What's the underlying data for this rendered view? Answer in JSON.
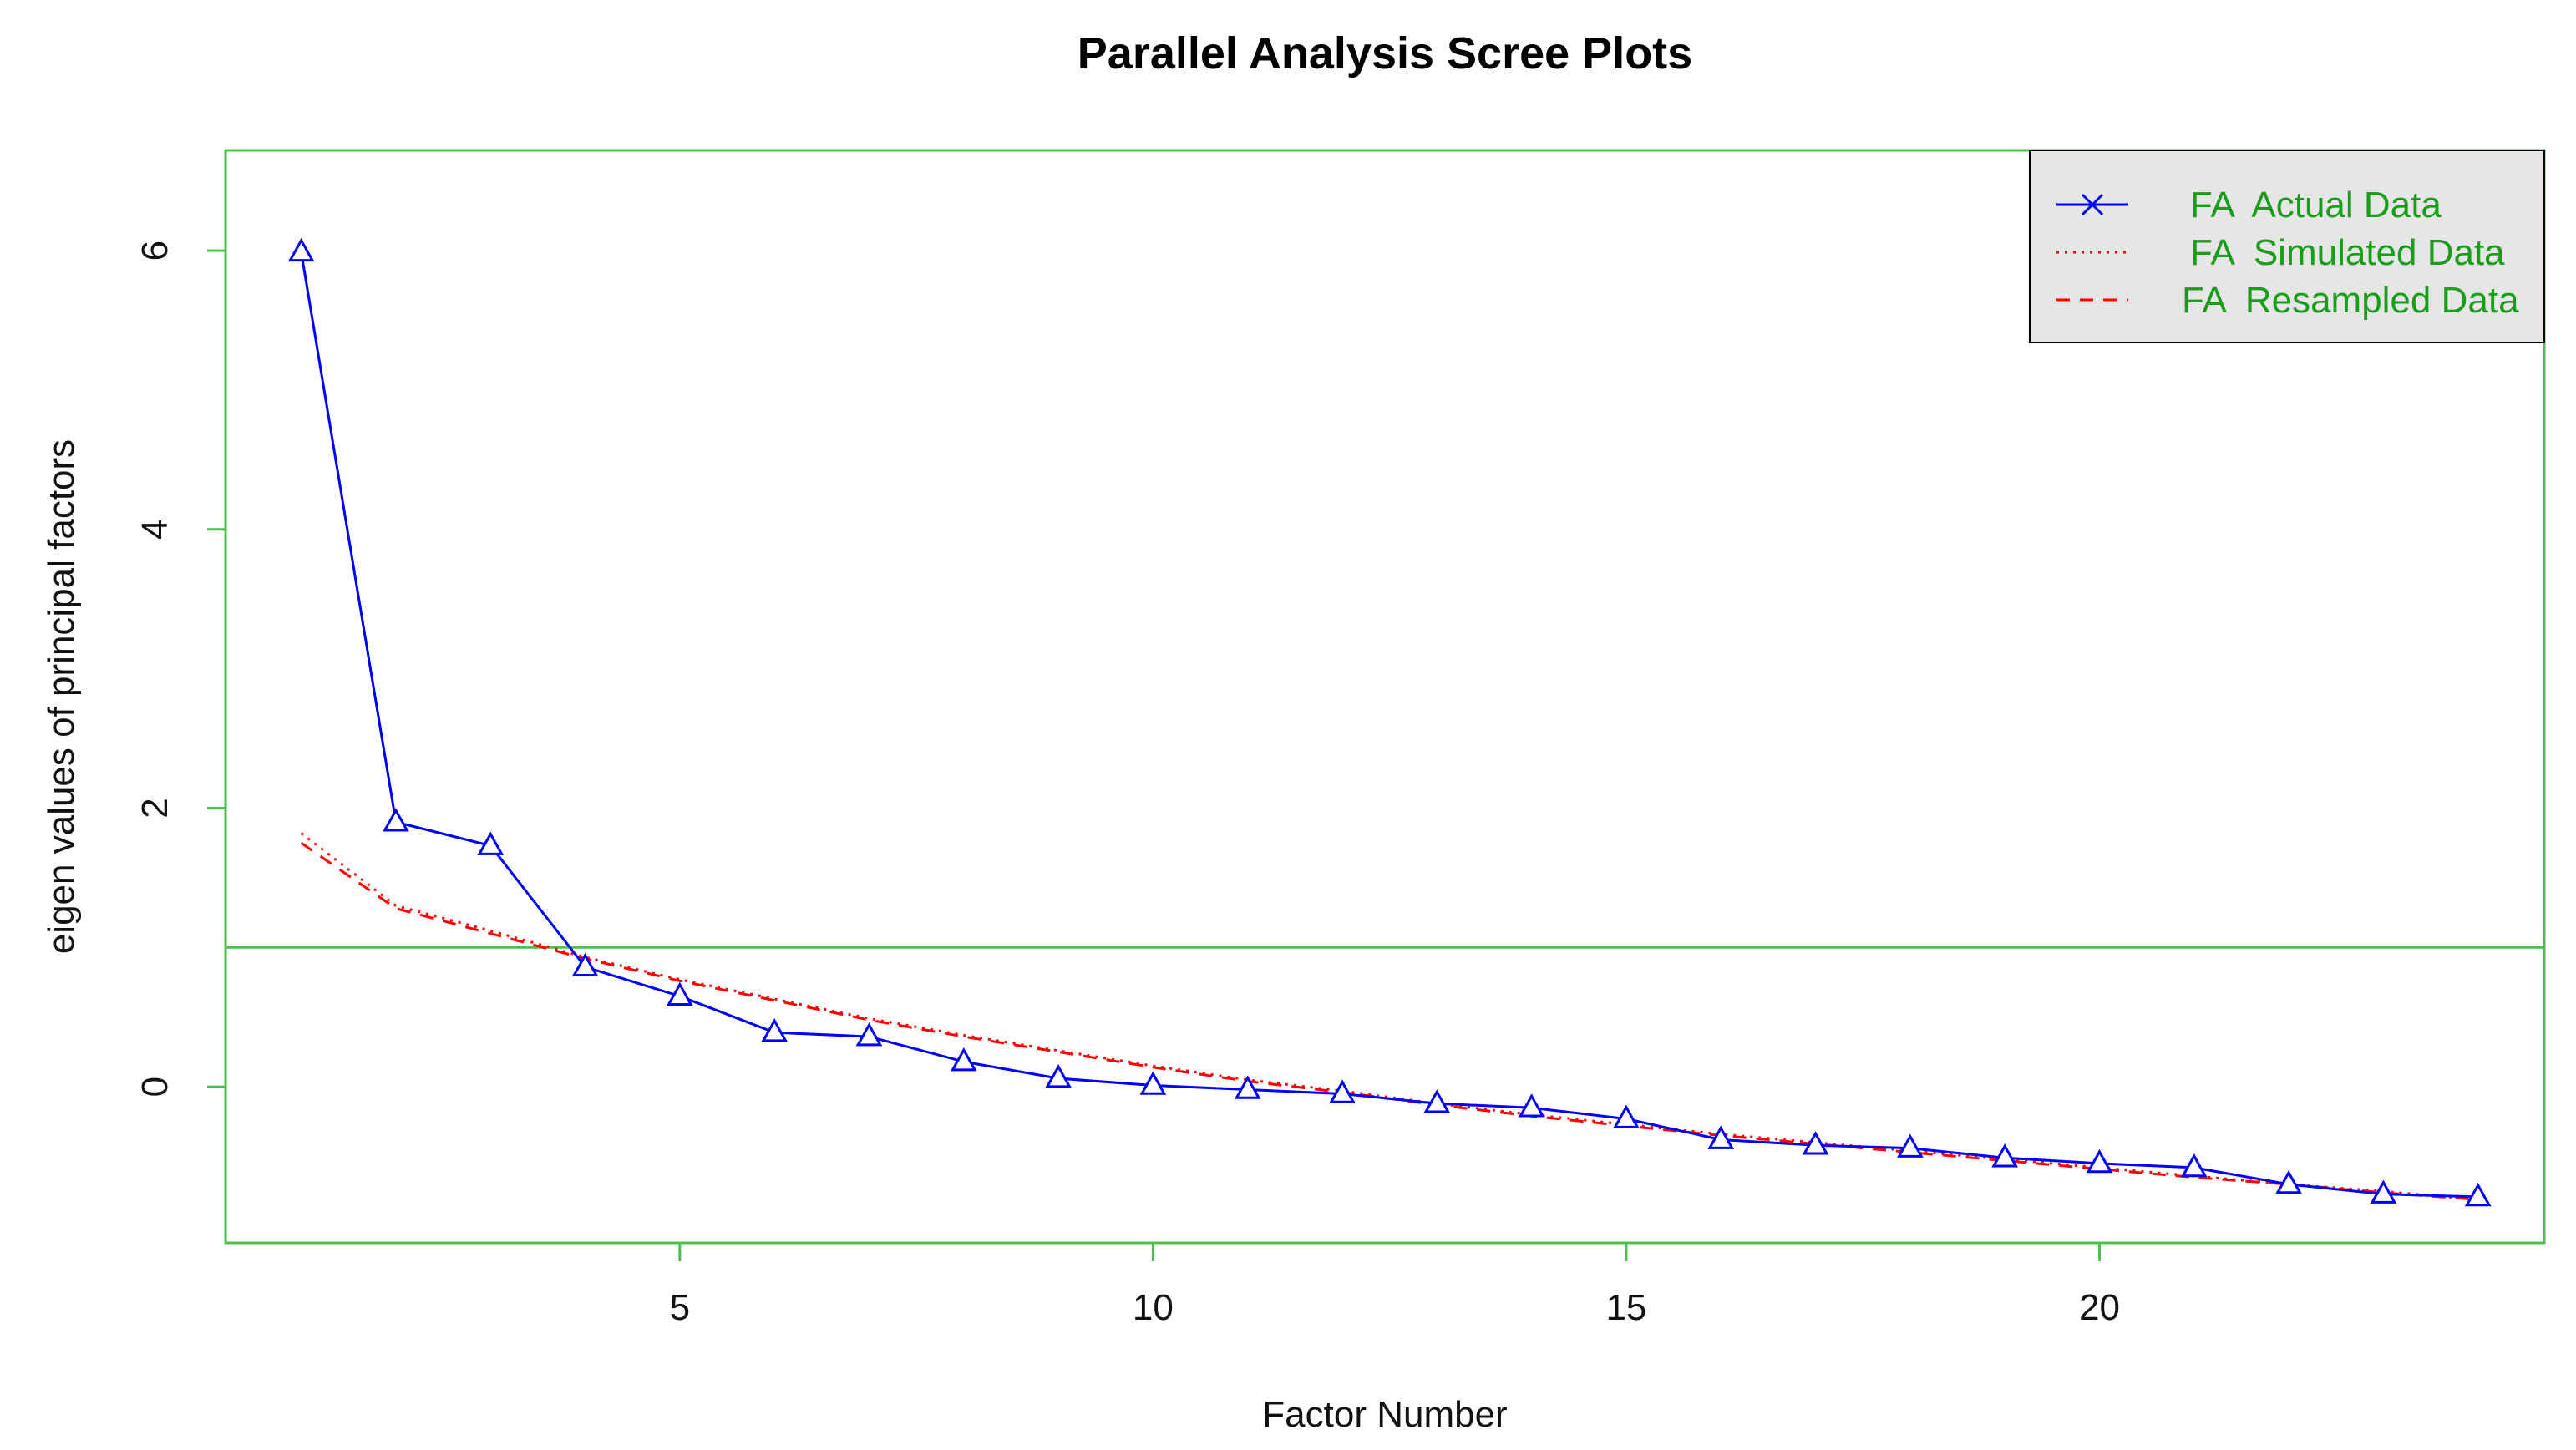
{
  "chart_data": {
    "type": "line",
    "title": "Parallel Analysis Scree Plots",
    "xlabel": "Factor Number",
    "ylabel": "eigen values of principal factors",
    "xlim": [
      0.2,
      24.7
    ],
    "ylim": [
      -1.12,
      6.72
    ],
    "xticks": [
      5,
      10,
      15,
      20
    ],
    "yticks": [
      0,
      2,
      4,
      6
    ],
    "reference_line": 1,
    "grid": false,
    "legend_position": "top-right",
    "colors": {
      "actual": "#0000ff",
      "simulated": "#ff0000",
      "resampled": "#ff0000",
      "frame": "#4cc04c",
      "reference": "#4cc04c",
      "legend_text": "#1a9d1a",
      "legend_bg": "#e6e6e6"
    },
    "x": [
      1,
      2,
      3,
      4,
      5,
      6,
      7,
      8,
      9,
      10,
      11,
      12,
      13,
      14,
      15,
      16,
      17,
      18,
      19,
      20,
      21,
      22,
      23,
      24
    ],
    "series": [
      {
        "name": "FA  Actual Data",
        "line": "solid",
        "marker": "triangle",
        "values": [
          5.99,
          1.9,
          1.73,
          0.86,
          0.65,
          0.39,
          0.36,
          0.18,
          0.06,
          0.01,
          -0.02,
          -0.05,
          -0.12,
          -0.15,
          -0.23,
          -0.38,
          -0.42,
          -0.44,
          -0.51,
          -0.55,
          -0.58,
          -0.7,
          -0.77,
          -0.79
        ]
      },
      {
        "name": "FA  Simulated Data",
        "line": "dotted",
        "marker": "none",
        "values": [
          1.82,
          1.3,
          1.12,
          0.93,
          0.77,
          0.63,
          0.49,
          0.37,
          0.26,
          0.15,
          0.05,
          -0.03,
          -0.12,
          -0.2,
          -0.27,
          -0.34,
          -0.4,
          -0.46,
          -0.52,
          -0.58,
          -0.64,
          -0.7,
          -0.75,
          -0.81
        ]
      },
      {
        "name": "FA  Resampled Data",
        "line": "dashed",
        "marker": "none",
        "values": [
          1.75,
          1.28,
          1.1,
          0.92,
          0.76,
          0.62,
          0.48,
          0.36,
          0.25,
          0.14,
          0.04,
          -0.04,
          -0.13,
          -0.21,
          -0.28,
          -0.35,
          -0.41,
          -0.47,
          -0.53,
          -0.59,
          -0.65,
          -0.7,
          -0.76,
          -0.81
        ]
      }
    ]
  }
}
